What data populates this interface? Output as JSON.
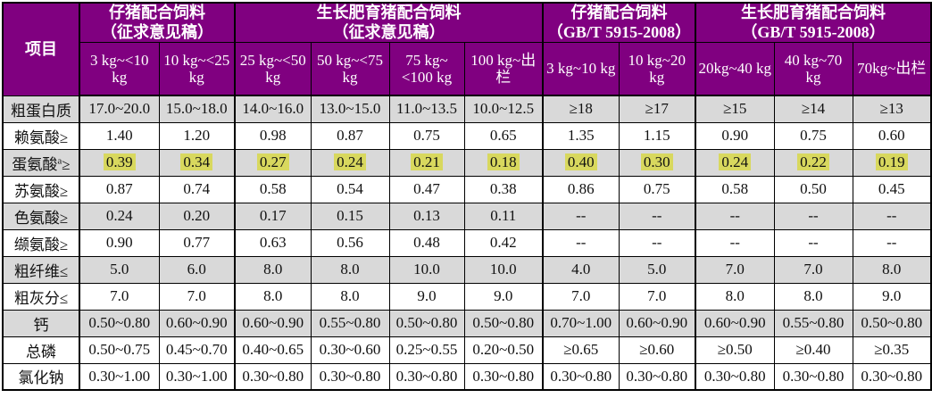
{
  "table": {
    "corner_label": "项目",
    "groups": [
      {
        "title": "仔猪配合饲料",
        "subtitle": "（征求意见稿）",
        "columns": [
          "3 kg~<10 kg",
          "10 kg~<25 kg"
        ]
      },
      {
        "title": "生长肥育猪配合饲料",
        "subtitle": "（征求意见稿）",
        "columns": [
          "25 kg~<50 kg",
          "50 kg~<75 kg",
          "75 kg~<100 kg",
          "100 kg~出栏"
        ]
      },
      {
        "title": "仔猪配合饲料",
        "subtitle": "（GB/T 5915-2008）",
        "columns": [
          "3 kg~10 kg",
          "10 kg~20 kg"
        ]
      },
      {
        "title": "生长肥育猪配合饲料",
        "subtitle": "（GB/T 5915-2008）",
        "columns": [
          "20kg~40 kg",
          "40 kg~70 kg",
          "70kg~出栏"
        ]
      }
    ],
    "rows": [
      {
        "name": "粗蛋白质",
        "sup": "",
        "op": "",
        "shaded": true,
        "highlight": false,
        "values": [
          "17.0~20.0",
          "15.0~18.0",
          "14.0~16.0",
          "13.0~15.0",
          "11.0~13.5",
          "10.0~12.5",
          "≥18",
          "≥17",
          "≥15",
          "≥14",
          "≥13"
        ]
      },
      {
        "name": "赖氨酸",
        "sup": "",
        "op": "≥",
        "shaded": false,
        "highlight": false,
        "values": [
          "1.40",
          "1.20",
          "0.98",
          "0.87",
          "0.75",
          "0.65",
          "1.35",
          "1.15",
          "0.90",
          "0.75",
          "0.60"
        ]
      },
      {
        "name": "蛋氨酸",
        "sup": "a",
        "op": "≥",
        "shaded": true,
        "highlight": true,
        "values": [
          "0.39",
          "0.34",
          "0.27",
          "0.24",
          "0.21",
          "0.18",
          "0.40",
          "0.30",
          "0.24",
          "0.22",
          "0.19"
        ]
      },
      {
        "name": "苏氨酸",
        "sup": "",
        "op": "≥",
        "shaded": false,
        "highlight": false,
        "values": [
          "0.87",
          "0.74",
          "0.58",
          "0.54",
          "0.47",
          "0.38",
          "0.86",
          "0.75",
          "0.58",
          "0.50",
          "0.45"
        ]
      },
      {
        "name": "色氨酸",
        "sup": "",
        "op": "≥",
        "shaded": true,
        "highlight": false,
        "values": [
          "0.24",
          "0.20",
          "0.17",
          "0.15",
          "0.13",
          "0.11",
          "--",
          "--",
          "--",
          "--",
          "--"
        ]
      },
      {
        "name": "缬氨酸",
        "sup": "",
        "op": "≥",
        "shaded": false,
        "highlight": false,
        "values": [
          "0.90",
          "0.77",
          "0.63",
          "0.56",
          "0.48",
          "0.42",
          "--",
          "--",
          "--",
          "--",
          "--"
        ]
      },
      {
        "name": "粗纤维",
        "sup": "",
        "op": "≤",
        "shaded": true,
        "highlight": false,
        "values": [
          "5.0",
          "6.0",
          "8.0",
          "8.0",
          "10.0",
          "10.0",
          "4.0",
          "5.0",
          "7.0",
          "7.0",
          "8.0"
        ]
      },
      {
        "name": "粗灰分",
        "sup": "",
        "op": "≤",
        "shaded": false,
        "highlight": false,
        "values": [
          "7.0",
          "7.0",
          "8.0",
          "8.0",
          "9.0",
          "9.0",
          "7.0",
          "7.0",
          "8.0",
          "8.0",
          "9.0"
        ]
      },
      {
        "name": "钙",
        "sup": "",
        "op": "",
        "shaded": true,
        "highlight": false,
        "values": [
          "0.50~0.80",
          "0.60~0.90",
          "0.60~0.90",
          "0.55~0.80",
          "0.50~0.80",
          "0.50~0.80",
          "0.70~1.00",
          "0.60~0.90",
          "0.60~0.90",
          "0.55~0.80",
          "0.50~0.80"
        ]
      },
      {
        "name": "总磷",
        "sup": "",
        "op": "",
        "shaded": false,
        "highlight": false,
        "values": [
          "0.50~0.75",
          "0.45~0.70",
          "0.40~0.65",
          "0.30~0.60",
          "0.25~0.55",
          "0.20~0.50",
          "≥0.65",
          "≥0.60",
          "≥0.50",
          "≥0.40",
          "≥0.35"
        ]
      },
      {
        "name": "氯化钠",
        "sup": "",
        "op": "",
        "shaded": false,
        "highlight": false,
        "values": [
          "0.30~1.00",
          "0.30~1.00",
          "0.30~0.80",
          "0.30~0.80",
          "0.30~0.80",
          "0.30~0.80",
          "0.30~0.80",
          "0.30~0.80",
          "0.30~0.80",
          "0.30~0.80",
          "0.30~0.80"
        ]
      }
    ]
  },
  "colors": {
    "header_bg": "#800080",
    "header_text": "#ffffff",
    "shaded_row_bg": "#d9d9d9",
    "highlight_bg": "#d8d85e",
    "border": "#000000"
  }
}
